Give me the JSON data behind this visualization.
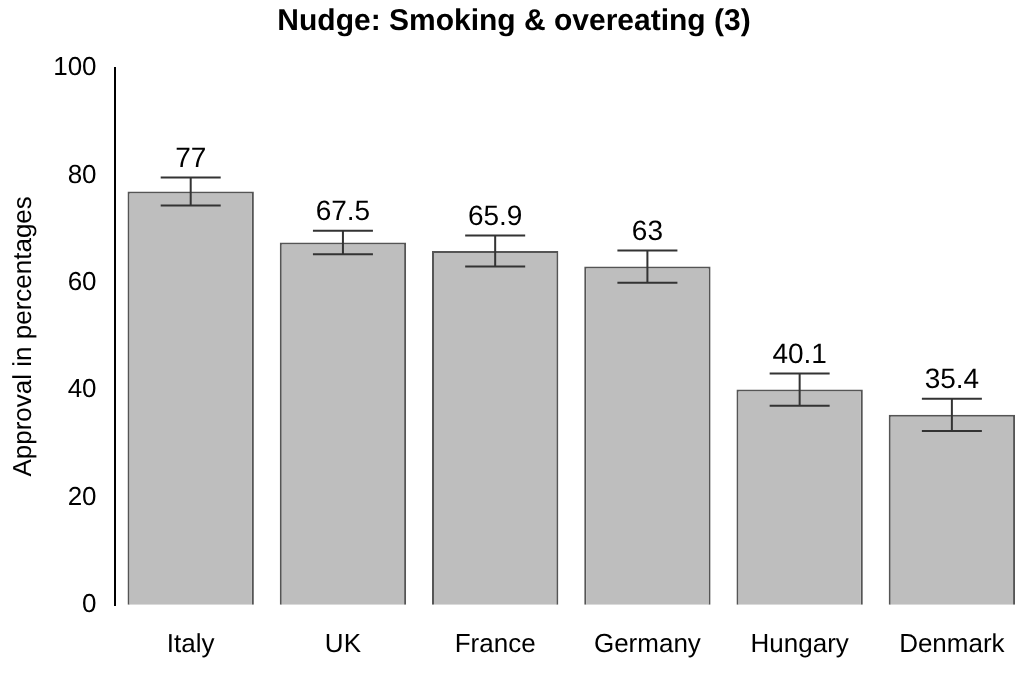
{
  "chart_data": {
    "type": "bar",
    "title": "Nudge: Smoking & overeating (3)",
    "ylabel": "Approval in percentages",
    "categories": [
      "Italy",
      "UK",
      "France",
      "Germany",
      "Hungary",
      "Denmark"
    ],
    "values": [
      77,
      67.5,
      65.9,
      63,
      40.1,
      35.4
    ],
    "errors": [
      2.6,
      2.2,
      2.9,
      3,
      3,
      3
    ],
    "color": "#bebebe",
    "data_labels": true,
    "grid": false,
    "legend": false,
    "ylim": [
      0,
      100
    ],
    "yticks": [
      0,
      20,
      40,
      60,
      80,
      100
    ]
  }
}
